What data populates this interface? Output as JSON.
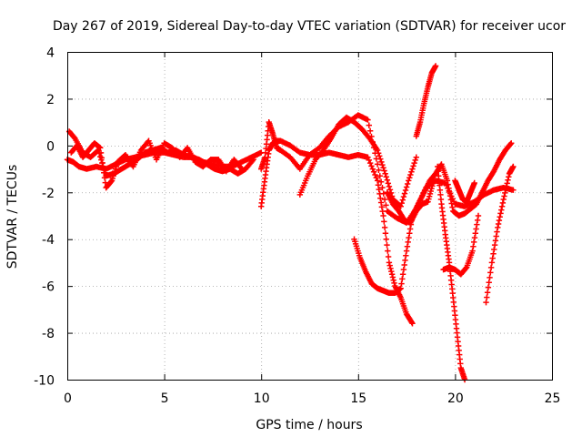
{
  "chart_data": {
    "type": "scatter",
    "title": "Day 267 of 2019, Sidereal Day-to-day VTEC variation (SDTVAR) for receiver ucor",
    "xlabel": "GPS time / hours",
    "ylabel": "SDTVAR / TECUs",
    "xlim": [
      0,
      25
    ],
    "ylim": [
      -10,
      4
    ],
    "xticks": [
      0,
      5,
      10,
      15,
      20,
      25
    ],
    "yticks": [
      -10,
      -8,
      -6,
      -4,
      -2,
      0,
      2,
      4
    ],
    "xtick_labels": [
      "0",
      "5",
      "10",
      "15",
      "20",
      "25"
    ],
    "ytick_labels": [
      "-10",
      "-8",
      "-6",
      "-4",
      "-2",
      "0",
      "2",
      "4"
    ],
    "grid": true,
    "marker": "+",
    "color": "#ff0000",
    "series": [
      {
        "name": "s1",
        "x": [
          0,
          0.3,
          0.6,
          1.0,
          1.5,
          2.0,
          2.5,
          3.0,
          3.5,
          4.0,
          4.5,
          5.0,
          5.5,
          6.0,
          6.5,
          7.0,
          7.5,
          8.0,
          8.5,
          9.0,
          9.5,
          10.0
        ],
        "y": [
          -0.6,
          -0.7,
          -0.9,
          -1.0,
          -0.9,
          -1.0,
          -0.8,
          -0.6,
          -0.5,
          -0.4,
          -0.3,
          -0.3,
          -0.4,
          -0.5,
          -0.5,
          -0.7,
          -0.8,
          -0.9,
          -0.9,
          -0.7,
          -0.5,
          -0.3
        ]
      },
      {
        "name": "s2",
        "x": [
          0.1,
          0.4,
          0.8,
          1.2,
          1.6,
          2.0,
          2.4,
          2.8,
          3.2,
          3.6,
          4.0,
          4.4,
          4.8,
          5.2,
          5.6,
          6.0,
          6.4,
          6.8,
          7.2,
          7.6,
          8.0,
          8.4,
          8.8,
          9.2,
          9.6
        ],
        "y": [
          0.6,
          0.3,
          -0.3,
          -0.5,
          -0.2,
          -1.3,
          -1.2,
          -1.0,
          -0.8,
          -0.6,
          -0.3,
          -0.2,
          -0.1,
          -0.3,
          -0.2,
          -0.4,
          -0.5,
          -0.6,
          -0.8,
          -1.0,
          -1.1,
          -1.0,
          -1.2,
          -1.0,
          -0.6
        ]
      },
      {
        "name": "s3",
        "x": [
          0.2,
          0.5,
          0.8,
          1.1,
          1.4,
          1.7,
          2.0,
          2.3,
          2.6,
          3.0,
          3.4,
          3.8,
          4.2,
          4.6,
          5.0,
          5.4,
          5.8,
          6.2,
          6.6,
          7.0,
          7.4,
          7.8,
          8.2,
          8.6,
          9.0
        ],
        "y": [
          -0.3,
          0.0,
          -0.5,
          -0.2,
          0.1,
          -0.1,
          -1.8,
          -1.5,
          -0.7,
          -0.4,
          -0.9,
          -0.2,
          0.2,
          -0.6,
          0.1,
          -0.1,
          -0.5,
          -0.1,
          -0.7,
          -0.9,
          -0.6,
          -0.6,
          -1.1,
          -0.6,
          -1.0
        ]
      },
      {
        "name": "s4",
        "x": [
          10.0,
          10.2,
          10.4,
          10.6,
          10.8,
          11.0,
          11.5,
          12.0,
          12.5,
          13.0,
          13.5,
          14.0,
          14.5,
          15.0,
          15.5,
          16.0,
          16.3,
          16.6,
          16.9,
          17.2,
          17.5,
          17.8
        ],
        "y": [
          -2.6,
          -1.4,
          -0.2,
          0.1,
          0.2,
          0.2,
          0.0,
          -0.3,
          -0.4,
          -0.4,
          -0.3,
          -0.4,
          -0.5,
          -0.4,
          -0.5,
          -1.5,
          -3.0,
          -5.0,
          -6.0,
          -6.5,
          -7.2,
          -7.6
        ]
      },
      {
        "name": "s5",
        "x": [
          10.0,
          10.2,
          10.4,
          10.6,
          10.8,
          11.0,
          11.5,
          12.0,
          12.5,
          13.0,
          13.5,
          14.0,
          14.5,
          15.0,
          15.5,
          16.0,
          16.5,
          17.0,
          17.5,
          18.0,
          18.5,
          19.0,
          19.5,
          20.0,
          20.5,
          21.0,
          21.5,
          22.0,
          22.5,
          23.0
        ],
        "y": [
          -1.0,
          -0.5,
          1.0,
          0.5,
          -0.1,
          -0.2,
          -0.5,
          -1.0,
          -0.4,
          -0.1,
          0.4,
          0.8,
          1.0,
          1.3,
          1.1,
          -0.8,
          -2.8,
          -3.1,
          -3.3,
          -2.7,
          -1.8,
          -1.5,
          -1.6,
          -2.5,
          -2.6,
          -2.4,
          -2.1,
          -1.9,
          -1.8,
          -1.9
        ]
      },
      {
        "name": "s6",
        "x": [
          12.0,
          12.4,
          12.8,
          13.2,
          13.6,
          14.0,
          14.4,
          14.8,
          15.2,
          15.6,
          16.0,
          16.4,
          16.8,
          17.2,
          17.6,
          18.0
        ],
        "y": [
          -2.1,
          -1.3,
          -0.6,
          -0.2,
          0.3,
          0.9,
          1.2,
          1.0,
          0.7,
          0.3,
          -0.2,
          -1.2,
          -2.3,
          -2.6,
          -1.5,
          -0.5
        ]
      },
      {
        "name": "s7",
        "x": [
          14.8,
          15.1,
          15.4,
          15.7,
          16.0,
          16.3,
          16.6,
          16.9,
          17.2,
          17.5,
          17.8,
          18.1,
          18.4,
          18.7,
          19.0,
          19.3,
          19.6,
          19.9,
          20.2,
          20.5,
          20.8,
          21.1,
          21.4,
          21.7,
          22.0,
          22.3,
          22.6,
          22.9
        ],
        "y": [
          -4.0,
          -4.8,
          -5.4,
          -5.9,
          -6.1,
          -6.2,
          -6.3,
          -6.3,
          -6.1,
          -4.5,
          -3.0,
          -2.5,
          -2.0,
          -1.5,
          -1.2,
          -0.8,
          -1.5,
          -2.8,
          -3.0,
          -2.9,
          -2.7,
          -2.5,
          -2.0,
          -1.5,
          -1.1,
          -0.6,
          -0.2,
          0.1
        ]
      },
      {
        "name": "s8",
        "x": [
          16.5,
          16.8,
          17.1,
          17.4,
          17.7,
          18.0,
          18.3,
          18.6,
          18.9
        ],
        "y": [
          -2.0,
          -2.5,
          -2.8,
          -3.2,
          -3.3,
          -2.8,
          -2.5,
          -2.4,
          -1.5
        ]
      },
      {
        "name": "s9",
        "x": [
          18.0,
          18.2,
          18.4,
          18.6,
          18.8,
          19.0
        ],
        "y": [
          0.4,
          1.0,
          1.8,
          2.5,
          3.1,
          3.4
        ]
      },
      {
        "name": "s10",
        "x": [
          19.1,
          19.3,
          19.5,
          19.7,
          19.9,
          20.1,
          20.3,
          20.5
        ],
        "y": [
          -0.9,
          -2.5,
          -3.8,
          -5.0,
          -6.5,
          -8.0,
          -9.5,
          -10.0
        ]
      },
      {
        "name": "s11",
        "x": [
          19.4,
          19.7,
          20.0,
          20.3,
          20.6,
          20.9,
          21.2
        ],
        "y": [
          -5.3,
          -5.2,
          -5.3,
          -5.5,
          -5.2,
          -4.5,
          -3.0
        ]
      },
      {
        "name": "s12",
        "x": [
          21.6,
          21.9,
          22.2,
          22.5,
          22.8,
          23.0
        ],
        "y": [
          -6.7,
          -5.0,
          -3.5,
          -2.3,
          -1.2,
          -0.9
        ]
      },
      {
        "name": "s13",
        "x": [
          20.0,
          20.2,
          20.4,
          20.6,
          20.8,
          21.0
        ],
        "y": [
          -1.5,
          -1.9,
          -2.3,
          -2.4,
          -2.0,
          -1.6
        ]
      }
    ]
  }
}
